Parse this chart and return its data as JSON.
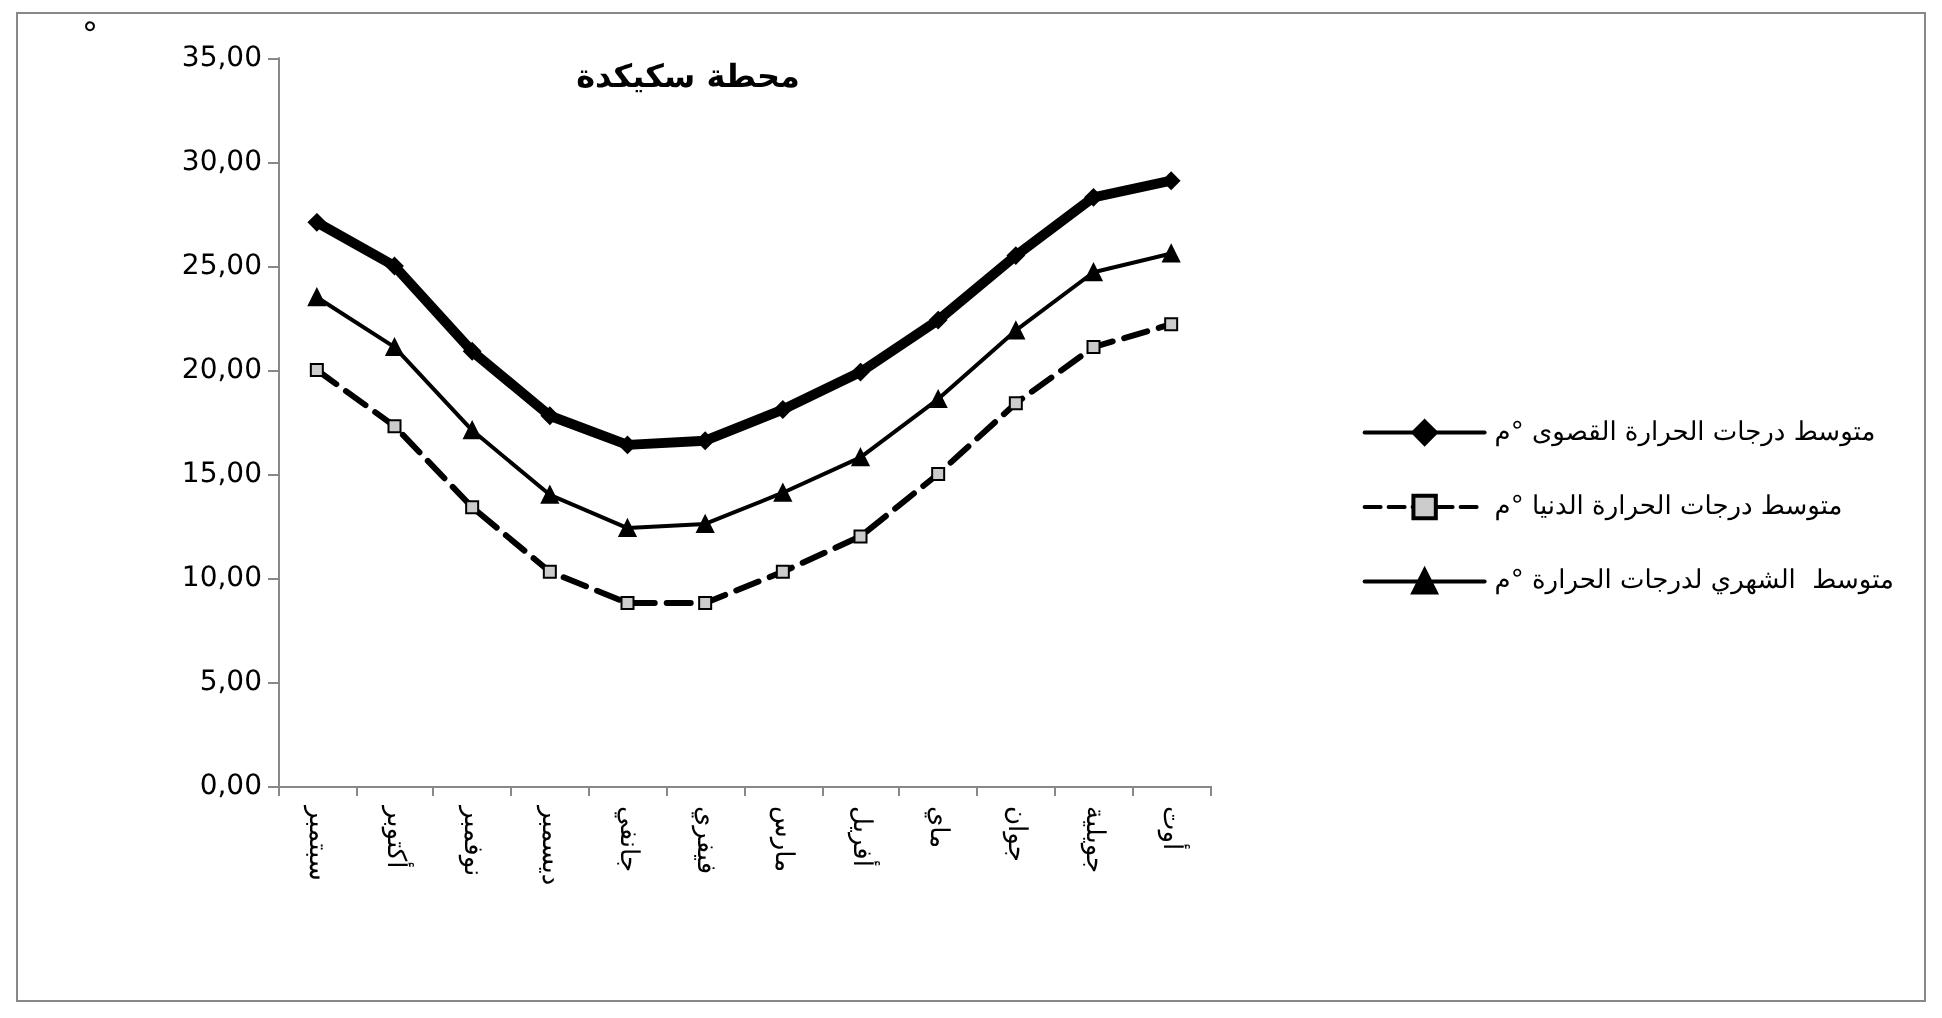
{
  "chart_data": {
    "type": "line",
    "title": "محطة سكيكدة",
    "ylabel": "°",
    "categories": [
      "سبتمبر",
      "أكتوبر",
      "نوفمبر",
      "ديسمبر",
      "جانفي",
      "فيفري",
      "مارس",
      "أفريل",
      "ماي",
      "جوان",
      "جويلية",
      "أوت"
    ],
    "series": [
      {
        "name": "متوسط درجات الحرارة القصوى °م",
        "color": "#000000",
        "marker": "diamond",
        "line_style": "solid",
        "values": [
          27.1,
          25.0,
          20.9,
          17.8,
          16.4,
          16.6,
          18.1,
          19.9,
          22.4,
          25.5,
          28.3,
          29.1
        ]
      },
      {
        "name": "متوسط درجات الحرارة الدنيا °م",
        "color": "#000000",
        "marker": "square",
        "line_style": "dashed",
        "values": [
          20.0,
          17.3,
          13.4,
          10.3,
          8.8,
          8.8,
          10.3,
          12.0,
          15.0,
          18.4,
          21.1,
          22.2
        ]
      },
      {
        "name": "متوسط  الشهري لدرجات الحرارة °م",
        "color": "#000000",
        "marker": "triangle",
        "line_style": "solid",
        "values": [
          23.5,
          21.1,
          17.1,
          14.0,
          12.4,
          12.6,
          14.1,
          15.8,
          18.6,
          21.9,
          24.7,
          25.6
        ]
      }
    ],
    "ylim": [
      0,
      35
    ],
    "yticks": [
      {
        "value": 0,
        "label": "0,00"
      },
      {
        "value": 5,
        "label": "5,00"
      },
      {
        "value": 10,
        "label": "10,00"
      },
      {
        "value": 15,
        "label": "15,00"
      },
      {
        "value": 20,
        "label": "20,00"
      },
      {
        "value": 25,
        "label": "25,00"
      },
      {
        "value": 30,
        "label": "30,00"
      },
      {
        "value": 35,
        "label": "35,00"
      }
    ],
    "grid": false,
    "legend": "right"
  }
}
